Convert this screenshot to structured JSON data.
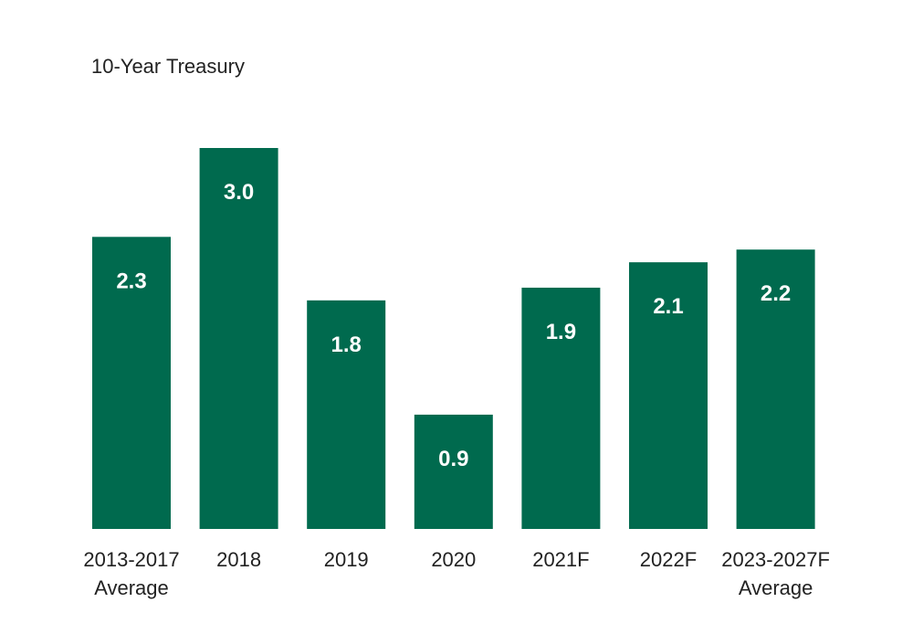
{
  "colors": {
    "bar": "#006a4e",
    "value_text": "#ffffff",
    "axis_text": "#222222"
  },
  "chart_data": {
    "type": "bar",
    "title": "10-Year Treasury",
    "xlabel": "",
    "ylabel": "",
    "categories": [
      [
        "2013-2017",
        "Average"
      ],
      [
        "2018"
      ],
      [
        "2019"
      ],
      [
        "2020"
      ],
      [
        "2021F"
      ],
      [
        "2022F"
      ],
      [
        "2023-2027F",
        "Average"
      ]
    ],
    "values": [
      2.3,
      3.0,
      1.8,
      0.9,
      1.9,
      2.1,
      2.2
    ],
    "value_labels": [
      "2.3",
      "3.0",
      "1.8",
      "0.9",
      "1.9",
      "2.1",
      "2.2"
    ],
    "ylim": [
      0,
      3.0
    ],
    "grid": false,
    "legend": "none"
  }
}
